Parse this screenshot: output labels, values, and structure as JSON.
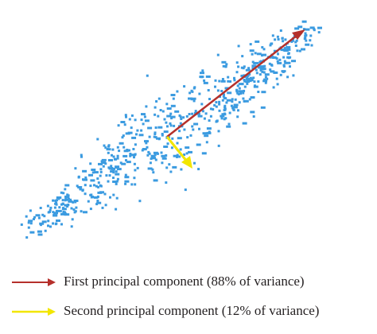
{
  "legend": {
    "items": [
      {
        "label": "First principal component (88% of variance)"
      },
      {
        "label": "Second principal component (12% of variance)"
      }
    ]
  }
}
